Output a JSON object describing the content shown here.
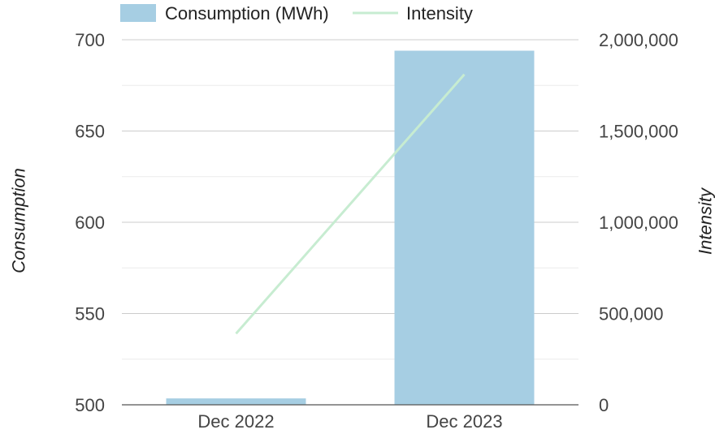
{
  "chart_data": {
    "type": "bar",
    "categories": [
      "Dec 2022",
      "Dec 2023"
    ],
    "series": [
      {
        "name": "Consumption (MWh)",
        "type": "bar",
        "axis": "left",
        "values": [
          503.5,
          694
        ],
        "color": "#a6cee3"
      },
      {
        "name": "Intensity",
        "type": "line",
        "axis": "right",
        "values": [
          390000,
          1810000
        ],
        "color": "#c7ecd1"
      }
    ],
    "xlabel": "",
    "ylabel": "Consumption",
    "y2label": "Intensity",
    "ylim": [
      500,
      700
    ],
    "y2lim": [
      0,
      2000000
    ],
    "yticks": [
      "500",
      "550",
      "600",
      "650",
      "700"
    ],
    "y2ticks": [
      "0",
      "500,000",
      "1,000,000",
      "1,500,000",
      "2,000,000"
    ],
    "legend": "top",
    "grid": true
  }
}
